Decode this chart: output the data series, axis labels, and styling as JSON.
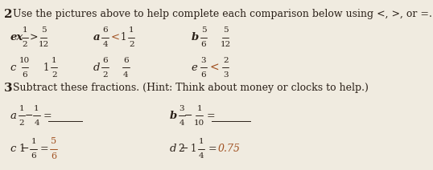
{
  "bg_color": "#f0ebe0",
  "text_color": "#2a2018",
  "handwritten_color": "#a05020",
  "header_number": "2",
  "header_text": "Use the pictures above to help complete each comparison below using <, >, or =.",
  "section3_number": "3",
  "section3_text": "Subtract these fractions. (Hint: Think about money or clocks to help.)",
  "ex_symbol": ">",
  "a_symbol": "<",
  "e_symbol": "<",
  "s3c_answer_num": "5",
  "s3c_answer_den": "6",
  "s3d_answer": "0.75"
}
